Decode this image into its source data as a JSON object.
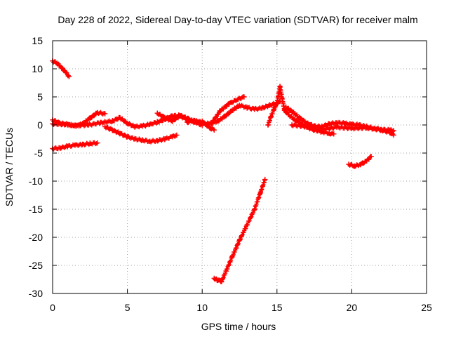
{
  "chart_data": {
    "type": "scatter",
    "title": "Day 228 of 2022, Sidereal Day-to-day VTEC variation (SDTVAR) for receiver malm",
    "xlabel": "GPS time / hours",
    "ylabel": "SDTVAR / TECUs",
    "xlim": [
      0,
      25
    ],
    "ylim": [
      -30,
      15
    ],
    "xticks": [
      0,
      5,
      10,
      15,
      20,
      25
    ],
    "yticks": [
      -30,
      -25,
      -20,
      -15,
      -10,
      -5,
      0,
      5,
      10,
      15
    ],
    "grid": true,
    "marker": "+",
    "color": "#ff0000",
    "series": [
      {
        "name": "arc1",
        "points": [
          [
            0.0,
            11.4
          ],
          [
            0.3,
            11.0
          ],
          [
            0.6,
            10.2
          ],
          [
            0.9,
            9.3
          ],
          [
            1.1,
            8.6
          ]
        ]
      },
      {
        "name": "arc2",
        "points": [
          [
            0.0,
            0.9
          ],
          [
            0.5,
            0.3
          ],
          [
            1.0,
            0.1
          ],
          [
            1.5,
            -0.2
          ],
          [
            2.0,
            0.2
          ],
          [
            2.5,
            1.2
          ],
          [
            3.0,
            2.2
          ],
          [
            3.5,
            2.0
          ]
        ]
      },
      {
        "name": "arc3",
        "points": [
          [
            0.0,
            0.2
          ],
          [
            0.8,
            0.1
          ],
          [
            1.6,
            -0.1
          ],
          [
            2.4,
            0.0
          ],
          [
            3.2,
            0.4
          ],
          [
            4.0,
            0.7
          ],
          [
            4.5,
            1.3
          ],
          [
            5.0,
            0.3
          ],
          [
            5.5,
            -0.3
          ],
          [
            6.0,
            -0.2
          ],
          [
            6.5,
            0.1
          ],
          [
            7.0,
            0.5
          ],
          [
            7.5,
            1.0
          ],
          [
            8.0,
            1.6
          ],
          [
            8.5,
            1.7
          ],
          [
            9.0,
            1.2
          ],
          [
            9.5,
            0.5
          ],
          [
            10.0,
            0.6
          ],
          [
            10.5,
            -0.5
          ],
          [
            10.8,
            -0.9
          ]
        ]
      },
      {
        "name": "arc4",
        "points": [
          [
            0.0,
            -4.2
          ],
          [
            0.5,
            -4.1
          ],
          [
            1.0,
            -3.8
          ],
          [
            1.5,
            -3.6
          ],
          [
            2.0,
            -3.5
          ],
          [
            2.5,
            -3.3
          ],
          [
            3.0,
            -3.2
          ]
        ]
      },
      {
        "name": "arc5",
        "points": [
          [
            3.5,
            -0.3
          ],
          [
            4.0,
            -0.9
          ],
          [
            4.5,
            -1.5
          ],
          [
            5.0,
            -2.1
          ],
          [
            5.5,
            -2.5
          ],
          [
            6.0,
            -2.7
          ],
          [
            6.5,
            -2.9
          ],
          [
            7.0,
            -2.8
          ],
          [
            7.5,
            -2.5
          ],
          [
            8.0,
            -2.1
          ],
          [
            8.3,
            -1.8
          ]
        ]
      },
      {
        "name": "arc6",
        "points": [
          [
            7.0,
            2.1
          ],
          [
            7.5,
            1.3
          ],
          [
            8.0,
            0.7
          ],
          [
            8.5,
            1.6
          ],
          [
            9.0,
            1.0
          ],
          [
            9.5,
            0.6
          ],
          [
            10.0,
            -0.1
          ]
        ]
      },
      {
        "name": "arc7",
        "points": [
          [
            9.0,
            0.5
          ],
          [
            9.5,
            0.8
          ],
          [
            10.0,
            0.3
          ],
          [
            10.5,
            0.2
          ],
          [
            11.0,
            0.6
          ],
          [
            11.5,
            1.5
          ],
          [
            12.0,
            2.6
          ],
          [
            12.5,
            3.5
          ],
          [
            13.0,
            3.1
          ],
          [
            13.5,
            2.8
          ],
          [
            14.0,
            3.0
          ],
          [
            14.5,
            3.5
          ],
          [
            15.0,
            3.9
          ],
          [
            15.2,
            4.2
          ]
        ]
      },
      {
        "name": "arc8",
        "points": [
          [
            10.6,
            0.2
          ],
          [
            11.2,
            2.5
          ],
          [
            11.8,
            3.8
          ],
          [
            12.4,
            4.6
          ],
          [
            12.8,
            5.0
          ]
        ]
      },
      {
        "name": "arc9",
        "points": [
          [
            10.8,
            -27.3
          ],
          [
            11.0,
            -27.6
          ],
          [
            11.3,
            -27.8
          ],
          [
            11.6,
            -26.0
          ],
          [
            12.0,
            -23.5
          ],
          [
            12.5,
            -20.5
          ],
          [
            13.0,
            -17.8
          ],
          [
            13.5,
            -15.0
          ],
          [
            13.9,
            -12.0
          ],
          [
            14.2,
            -9.7
          ]
        ]
      },
      {
        "name": "arc10",
        "points": [
          [
            14.4,
            0.0
          ],
          [
            14.6,
            1.5
          ],
          [
            14.8,
            2.8
          ],
          [
            15.0,
            4.0
          ],
          [
            15.2,
            6.8
          ],
          [
            15.5,
            2.6
          ],
          [
            15.8,
            1.8
          ],
          [
            16.2,
            0.9
          ],
          [
            16.6,
            0.2
          ],
          [
            17.0,
            -0.4
          ],
          [
            17.5,
            -0.9
          ],
          [
            18.0,
            -1.2
          ],
          [
            18.5,
            -1.5
          ],
          [
            18.8,
            -1.6
          ]
        ]
      },
      {
        "name": "arc11",
        "points": [
          [
            15.6,
            3.2
          ],
          [
            16.0,
            2.4
          ],
          [
            16.5,
            1.3
          ],
          [
            17.0,
            0.3
          ],
          [
            17.5,
            -0.2
          ],
          [
            18.0,
            -0.3
          ],
          [
            18.5,
            0.2
          ],
          [
            19.0,
            0.4
          ],
          [
            19.5,
            0.3
          ],
          [
            20.0,
            0.1
          ],
          [
            20.5,
            0.0
          ],
          [
            21.0,
            -0.3
          ],
          [
            21.5,
            -0.6
          ],
          [
            22.0,
            -0.8
          ],
          [
            22.5,
            -0.9
          ],
          [
            22.8,
            -1.0
          ]
        ]
      },
      {
        "name": "arc12",
        "points": [
          [
            16.0,
            0.0
          ],
          [
            17.0,
            -0.3
          ],
          [
            18.0,
            -0.8
          ],
          [
            19.0,
            -0.4
          ],
          [
            20.0,
            -0.6
          ],
          [
            21.0,
            -0.5
          ],
          [
            22.0,
            -0.9
          ],
          [
            22.6,
            -1.4
          ],
          [
            22.8,
            -1.8
          ]
        ]
      },
      {
        "name": "arc13",
        "points": [
          [
            19.8,
            -7.0
          ],
          [
            20.2,
            -7.3
          ],
          [
            20.6,
            -7.0
          ],
          [
            21.0,
            -6.4
          ],
          [
            21.3,
            -5.6
          ]
        ]
      }
    ]
  }
}
